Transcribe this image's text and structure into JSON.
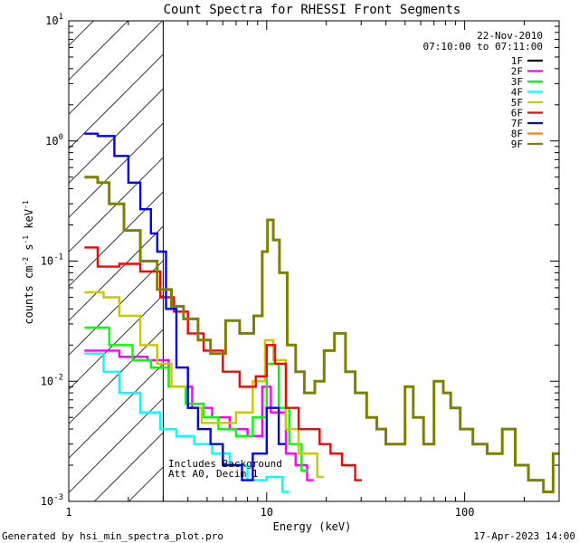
{
  "chart_data": {
    "type": "line",
    "title": "Count Spectra for RHESSI Front Segments",
    "xlabel": "Energy (keV)",
    "ylabel_parts": {
      "base": "counts cm",
      "exp1": "-2",
      "mid": " s",
      "exp2": "-1",
      "unit": " keV",
      "exp3": "-1"
    },
    "xscale": "log",
    "yscale": "log",
    "xlim": [
      1,
      300
    ],
    "ylim": [
      0.001,
      10
    ],
    "x_ticks": [
      {
        "value": 1,
        "label": "1"
      },
      {
        "value": 10,
        "label": "10"
      },
      {
        "value": 100,
        "label": "100"
      }
    ],
    "y_ticks": [
      {
        "value": 0.001,
        "base": "10",
        "exp": "-3"
      },
      {
        "value": 0.01,
        "base": "10",
        "exp": "-2"
      },
      {
        "value": 0.1,
        "base": "10",
        "exp": "-1"
      },
      {
        "value": 1,
        "base": "10",
        "exp": "0"
      },
      {
        "value": 10,
        "base": "10",
        "exp": "1"
      }
    ],
    "date": "22-Nov-2010",
    "time_range": "07:10:00 to 07:11:00",
    "legend_position": "top-right",
    "attenuator_region_max_keV": 3,
    "annotations": [
      "Includes Background",
      "Att A0, Decim 1"
    ],
    "series": [
      {
        "name": "1F",
        "color": "#000000",
        "points": []
      },
      {
        "name": "2F",
        "color": "#ff00ff",
        "points": [
          [
            1.2,
            0.018
          ],
          [
            1.6,
            0.018
          ],
          [
            1.8,
            0.016
          ],
          [
            2.5,
            0.015
          ],
          [
            3.2,
            0.009
          ],
          [
            4.2,
            0.006
          ],
          [
            5.3,
            0.005
          ],
          [
            6.5,
            0.004
          ],
          [
            8,
            0.0035
          ],
          [
            9.5,
            0.009
          ],
          [
            10.5,
            0.0055
          ],
          [
            12.5,
            0.0025
          ],
          [
            14,
            0.002
          ],
          [
            16,
            0.0015
          ]
        ]
      },
      {
        "name": "3F",
        "color": "#00ff00",
        "points": [
          [
            1.2,
            0.028
          ],
          [
            1.6,
            0.02
          ],
          [
            2.1,
            0.015
          ],
          [
            2.6,
            0.013
          ],
          [
            3.2,
            0.009
          ],
          [
            3.9,
            0.0065
          ],
          [
            4.8,
            0.005
          ],
          [
            5.7,
            0.004
          ],
          [
            7,
            0.0035
          ],
          [
            8.5,
            0.005
          ],
          [
            10,
            0.014
          ],
          [
            11.5,
            0.006
          ],
          [
            13,
            0.003
          ],
          [
            15,
            0.0018
          ]
        ]
      },
      {
        "name": "4F",
        "color": "#00ffff",
        "points": [
          [
            1.2,
            0.017
          ],
          [
            1.5,
            0.012
          ],
          [
            1.8,
            0.008
          ],
          [
            2.3,
            0.0055
          ],
          [
            2.9,
            0.004
          ],
          [
            3.5,
            0.0035
          ],
          [
            4.3,
            0.003
          ],
          [
            5.3,
            0.0025
          ],
          [
            6.5,
            0.002
          ],
          [
            8,
            0.0015
          ],
          [
            10,
            0.0016
          ],
          [
            12,
            0.0012
          ]
        ]
      },
      {
        "name": "5F",
        "color": "#c8c800",
        "points": [
          [
            1.2,
            0.055
          ],
          [
            1.5,
            0.05
          ],
          [
            1.8,
            0.035
          ],
          [
            2.3,
            0.02
          ],
          [
            2.8,
            0.014
          ],
          [
            3.3,
            0.009
          ],
          [
            4,
            0.006
          ],
          [
            4.7,
            0.0045
          ],
          [
            5.7,
            0.0045
          ],
          [
            7,
            0.0055
          ],
          [
            8.5,
            0.01
          ],
          [
            9.8,
            0.022
          ],
          [
            10.8,
            0.015
          ],
          [
            12.5,
            0.004
          ],
          [
            14.5,
            0.0025
          ],
          [
            18,
            0.0016
          ]
        ]
      },
      {
        "name": "6F",
        "color": "#ff0000",
        "points": [
          [
            1.2,
            0.13
          ],
          [
            1.4,
            0.09
          ],
          [
            1.8,
            0.095
          ],
          [
            2.3,
            0.082
          ],
          [
            2.9,
            0.05
          ],
          [
            3.4,
            0.038
          ],
          [
            4,
            0.025
          ],
          [
            4.8,
            0.018
          ],
          [
            6,
            0.012
          ],
          [
            7.3,
            0.009
          ],
          [
            8.8,
            0.011
          ],
          [
            10,
            0.02
          ],
          [
            11,
            0.014
          ],
          [
            12.5,
            0.006
          ],
          [
            14.5,
            0.004
          ],
          [
            16,
            0.004
          ],
          [
            18.5,
            0.003
          ],
          [
            21,
            0.0025
          ],
          [
            24,
            0.002
          ],
          [
            28,
            0.0015
          ]
        ]
      },
      {
        "name": "7F",
        "color": "#0000ff",
        "points": [
          [
            1.2,
            1.15
          ],
          [
            1.4,
            1.1
          ],
          [
            1.7,
            0.75
          ],
          [
            2,
            0.45
          ],
          [
            2.3,
            0.27
          ],
          [
            2.6,
            0.17
          ],
          [
            2.8,
            0.12
          ],
          [
            3.1,
            0.04
          ],
          [
            3.5,
            0.013
          ],
          [
            4,
            0.006
          ],
          [
            4.5,
            0.004
          ],
          [
            5.2,
            0.003
          ],
          [
            6,
            0.002
          ],
          [
            7.5,
            0.0015
          ],
          [
            8.5,
            0.0025
          ],
          [
            10,
            0.006
          ],
          [
            11.5,
            0.003
          ]
        ]
      },
      {
        "name": "8F",
        "color": "#ff8000",
        "points": []
      },
      {
        "name": "9F",
        "color": "#808000",
        "points": [
          [
            1.2,
            0.5
          ],
          [
            1.4,
            0.45
          ],
          [
            1.6,
            0.3
          ],
          [
            1.9,
            0.18
          ],
          [
            2.3,
            0.1
          ],
          [
            2.8,
            0.058
          ],
          [
            3.3,
            0.042
          ],
          [
            3.8,
            0.033
          ],
          [
            4.5,
            0.022
          ],
          [
            5.2,
            0.017
          ],
          [
            6.2,
            0.032
          ],
          [
            7.3,
            0.025
          ],
          [
            8.6,
            0.035
          ],
          [
            9.5,
            0.12
          ],
          [
            10.1,
            0.22
          ],
          [
            10.8,
            0.15
          ],
          [
            11.6,
            0.08
          ],
          [
            12.7,
            0.02
          ],
          [
            14,
            0.012
          ],
          [
            15.5,
            0.008
          ],
          [
            17.5,
            0.01
          ],
          [
            19.5,
            0.018
          ],
          [
            22,
            0.025
          ],
          [
            25,
            0.012
          ],
          [
            28,
            0.008
          ],
          [
            32,
            0.005
          ],
          [
            36,
            0.004
          ],
          [
            40,
            0.003
          ],
          [
            45,
            0.003
          ],
          [
            50,
            0.009
          ],
          [
            55,
            0.005
          ],
          [
            62,
            0.003
          ],
          [
            70,
            0.01
          ],
          [
            78,
            0.008
          ],
          [
            85,
            0.006
          ],
          [
            95,
            0.004
          ],
          [
            110,
            0.003
          ],
          [
            130,
            0.0025
          ],
          [
            155,
            0.004
          ],
          [
            180,
            0.002
          ],
          [
            210,
            0.0015
          ],
          [
            250,
            0.0012
          ],
          [
            280,
            0.0025
          ]
        ]
      }
    ]
  },
  "footer": {
    "generated_by": "Generated by hsi_min_spectra_plot.pro",
    "timestamp": "17-Apr-2023 14:00"
  }
}
